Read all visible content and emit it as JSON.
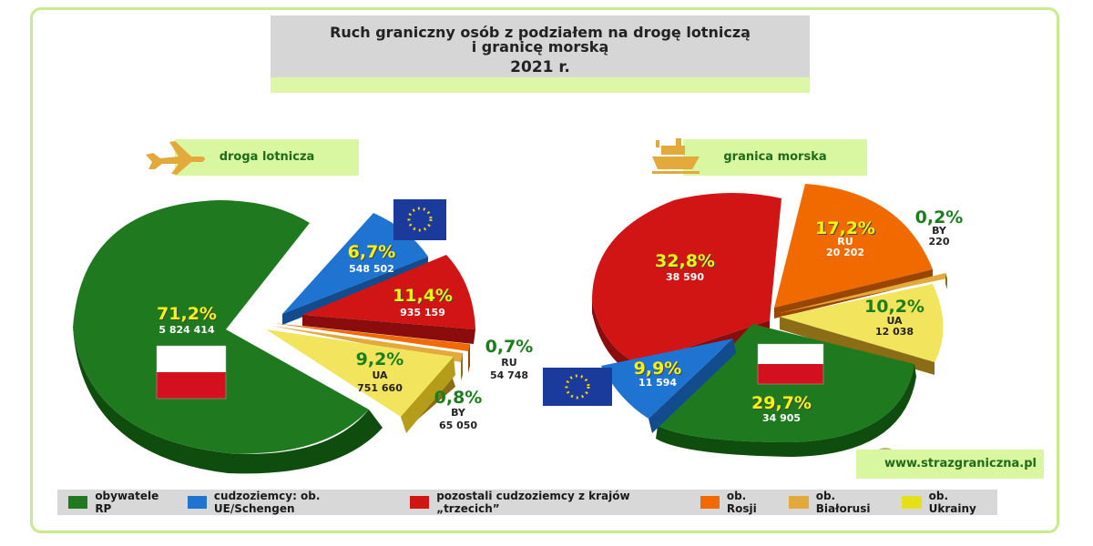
{
  "title": {
    "line1": "Ruch graniczny osób z podziałem na drogę lotniczą",
    "line2": "i granicę morską",
    "year": "2021 r."
  },
  "website": "www.strazgraniczna.pl",
  "colors": {
    "green": "#1f7a1f",
    "blue": "#1f74d1",
    "red": "#d11414",
    "orange": "#f06a00",
    "tan": "#e3a93b",
    "yellow": "#f3e45d"
  },
  "legend": [
    {
      "label": "obywatele RP",
      "color": "#1f7a1f"
    },
    {
      "label": "cudzoziemcy: ob. UE/Schengen",
      "color": "#1f74d1"
    },
    {
      "label": "pozostali cudzoziemcy z krajów „trzecich”",
      "color": "#d11414"
    },
    {
      "label": "ob. Rosji",
      "color": "#f06a00"
    },
    {
      "label": "ob. Białorusi",
      "color": "#e3a93b"
    },
    {
      "label": "ob. Ukrainy",
      "color": "#e6e01a"
    }
  ],
  "chart_data": [
    {
      "type": "pie",
      "title": "droga lotnicza",
      "icon": "airplane-icon",
      "slices": [
        {
          "category": "obywatele RP",
          "percent": "71,2%",
          "value": "5 824 414",
          "code": ""
        },
        {
          "category": "cudzoziemcy: ob. UE/Schengen",
          "percent": "6,7%",
          "value": "548 502",
          "code": ""
        },
        {
          "category": "pozostali cudzoziemcy z krajów „trzecich”",
          "percent": "11,4%",
          "value": "935 159",
          "code": ""
        },
        {
          "category": "ob. Rosji",
          "percent": "0,7%",
          "value": "54 748",
          "code": "RU"
        },
        {
          "category": "ob. Białorusi",
          "percent": "0,8%",
          "value": "65 050",
          "code": "BY"
        },
        {
          "category": "ob. Ukrainy",
          "percent": "9,2%",
          "value": "751 660",
          "code": "UA"
        }
      ]
    },
    {
      "type": "pie",
      "title": "granica morska",
      "icon": "ship-icon",
      "slices": [
        {
          "category": "obywatele RP",
          "percent": "29,7%",
          "value": "34 905",
          "code": ""
        },
        {
          "category": "cudzoziemcy: ob. UE/Schengen",
          "percent": "9,9%",
          "value": "11 594",
          "code": ""
        },
        {
          "category": "pozostali cudzoziemcy z krajów „trzecich”",
          "percent": "32,8%",
          "value": "38 590",
          "code": ""
        },
        {
          "category": "ob. Rosji",
          "percent": "17,2%",
          "value": "20 202",
          "code": "RU"
        },
        {
          "category": "ob. Białorusi",
          "percent": "0,2%",
          "value": "220",
          "code": "BY"
        },
        {
          "category": "ob. Ukrainy",
          "percent": "10,2%",
          "value": "12 038",
          "code": "UA"
        }
      ]
    }
  ]
}
